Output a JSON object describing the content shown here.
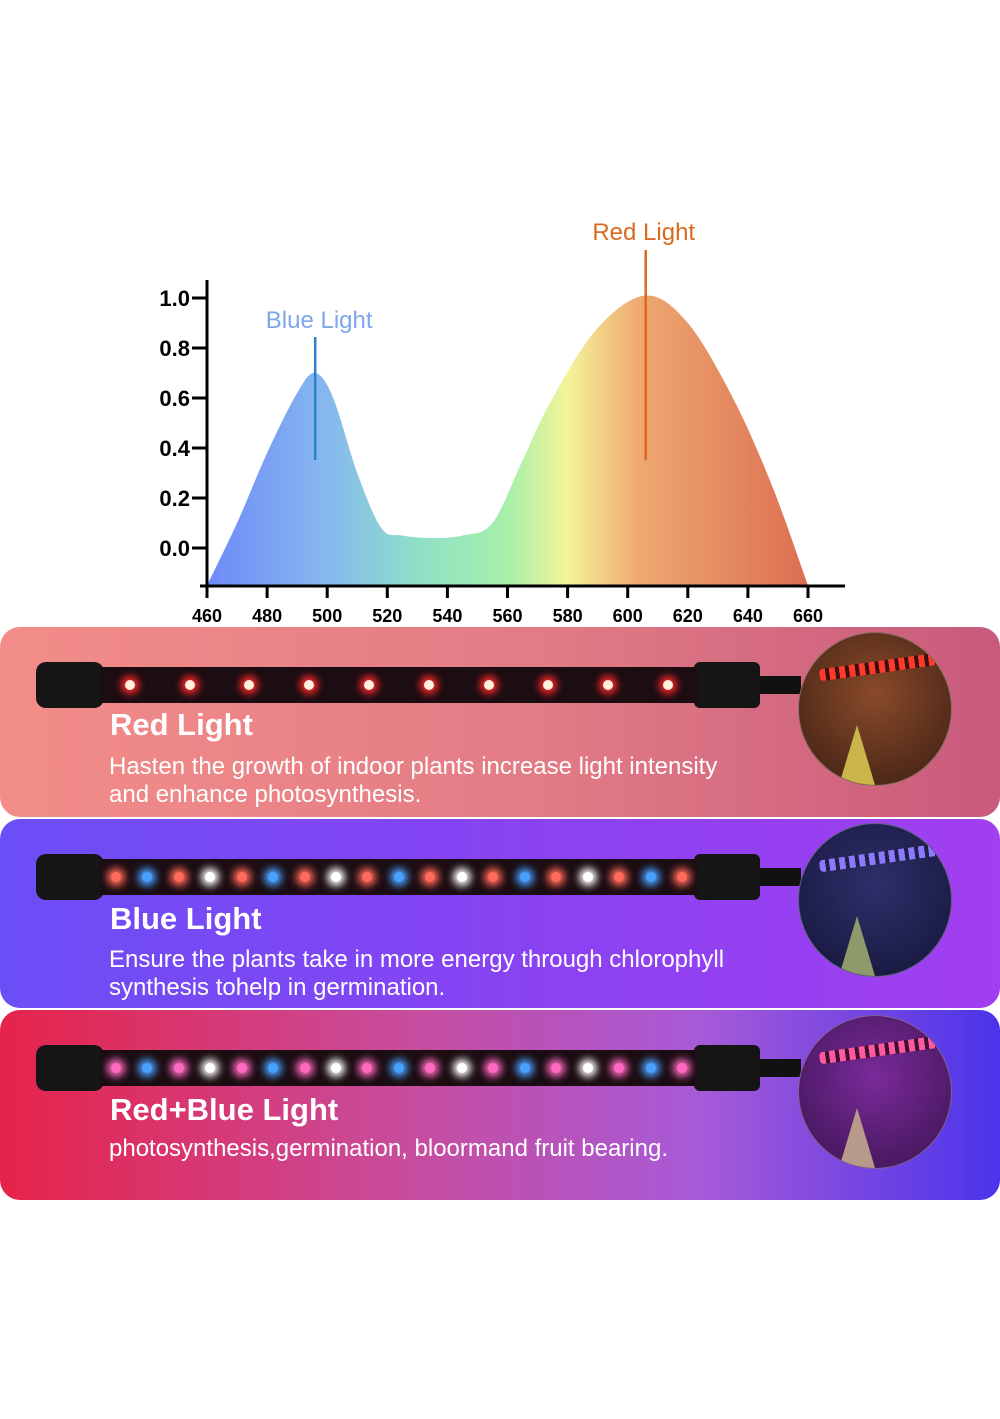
{
  "chart_data": {
    "type": "area",
    "x": [
      460,
      470,
      480,
      490,
      496,
      502,
      510,
      518,
      525,
      535,
      545,
      555,
      565,
      575,
      590,
      606,
      620,
      635,
      648,
      660
    ],
    "y": [
      -0.15,
      0.1,
      0.38,
      0.62,
      0.7,
      0.6,
      0.3,
      0.08,
      0.05,
      0.04,
      0.05,
      0.1,
      0.35,
      0.6,
      0.88,
      1.01,
      0.9,
      0.6,
      0.25,
      -0.15
    ],
    "xlim": [
      460,
      660
    ],
    "ylim": [
      -0.15,
      1.0
    ],
    "xticks": [
      "460",
      "480",
      "500",
      "520",
      "540",
      "560",
      "580",
      "600",
      "620",
      "640",
      "660"
    ],
    "yticks": [
      "1.0",
      "0.8",
      "0.6",
      "0.4",
      "0.2",
      "0.0"
    ],
    "fill": "spectrum gradient blue to red",
    "grid": false,
    "annotations": [
      {
        "label": "Blue Light",
        "x": 496,
        "color": "#7ea6ea",
        "line_color": "#2a7fd0"
      },
      {
        "label": "Red Light",
        "x": 606,
        "color": "#d96a1e",
        "line_color": "#d96a1e"
      }
    ]
  },
  "panels": [
    {
      "title": "Red Light",
      "desc1": "Hasten the growth of indoor plants increase light intensity",
      "desc2": "and enhance photosynthesis.",
      "leds": "red"
    },
    {
      "title": "Blue Light",
      "desc1": "Ensure the plants take in more energy through chlorophyll",
      "desc2": "synthesis tohelp in germination.",
      "leds": "blue-white"
    },
    {
      "title": "Red+Blue Light",
      "desc1": "photosynthesis,germination, bloormand fruit bearing.",
      "desc2": "",
      "leds": "red-blue-white"
    }
  ]
}
